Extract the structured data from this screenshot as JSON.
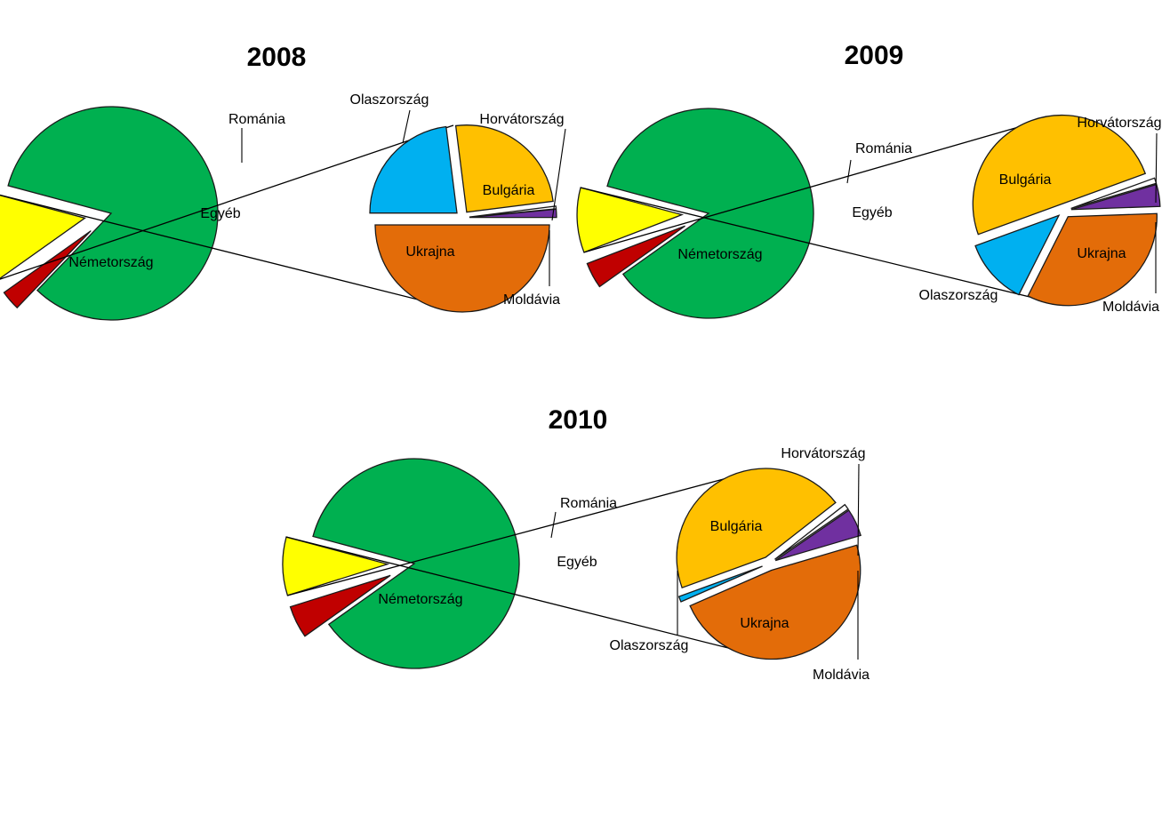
{
  "colors": {
    "Németország": "#00b050",
    "Románia": "#c00000",
    "Egyéb": "#ffff00",
    "Olaszország": "#00b0f0",
    "Bulgária": "#ffc000",
    "Horvátország": "#ffffff",
    "Moldávia": "#7030a0",
    "Ukrajna": "#e36c09"
  },
  "chart_data": [
    {
      "type": "pie",
      "title": "2008",
      "main": {
        "slices": [
          {
            "label": "Németország",
            "value": 83
          },
          {
            "label": "Románia",
            "value": 3
          },
          {
            "label": "Egyéb",
            "value": 14
          }
        ]
      },
      "detail": {
        "of": "Egyéb",
        "slices": [
          {
            "label": "Olaszország",
            "value": 23
          },
          {
            "label": "Bulgária",
            "value": 25
          },
          {
            "label": "Horvátország",
            "value": 0.5
          },
          {
            "label": "Moldávia",
            "value": 1.5
          },
          {
            "label": "Ukrajna",
            "value": 50
          }
        ]
      }
    },
    {
      "type": "pie",
      "title": "2009",
      "main": {
        "slices": [
          {
            "label": "Németország",
            "value": 86
          },
          {
            "label": "Románia",
            "value": 4
          },
          {
            "label": "Egyéb",
            "value": 10
          }
        ]
      },
      "detail": {
        "of": "Egyéb",
        "slices": [
          {
            "label": "Bulgária",
            "value": 50
          },
          {
            "label": "Horvátország",
            "value": 1
          },
          {
            "label": "Moldávia",
            "value": 4
          },
          {
            "label": "Ukrajna",
            "value": 33
          },
          {
            "label": "Olaszország",
            "value": 12
          }
        ]
      }
    },
    {
      "type": "pie",
      "title": "2010",
      "main": {
        "slices": [
          {
            "label": "Németország",
            "value": 86
          },
          {
            "label": "Románia",
            "value": 5
          },
          {
            "label": "Egyéb",
            "value": 9
          }
        ]
      },
      "detail": {
        "of": "Egyéb",
        "slices": [
          {
            "label": "Bulgária",
            "value": 45
          },
          {
            "label": "Horvátország",
            "value": 1
          },
          {
            "label": "Moldávia",
            "value": 5
          },
          {
            "label": "Ukrajna",
            "value": 48
          },
          {
            "label": "Olaszország",
            "value": 1
          }
        ]
      }
    }
  ]
}
